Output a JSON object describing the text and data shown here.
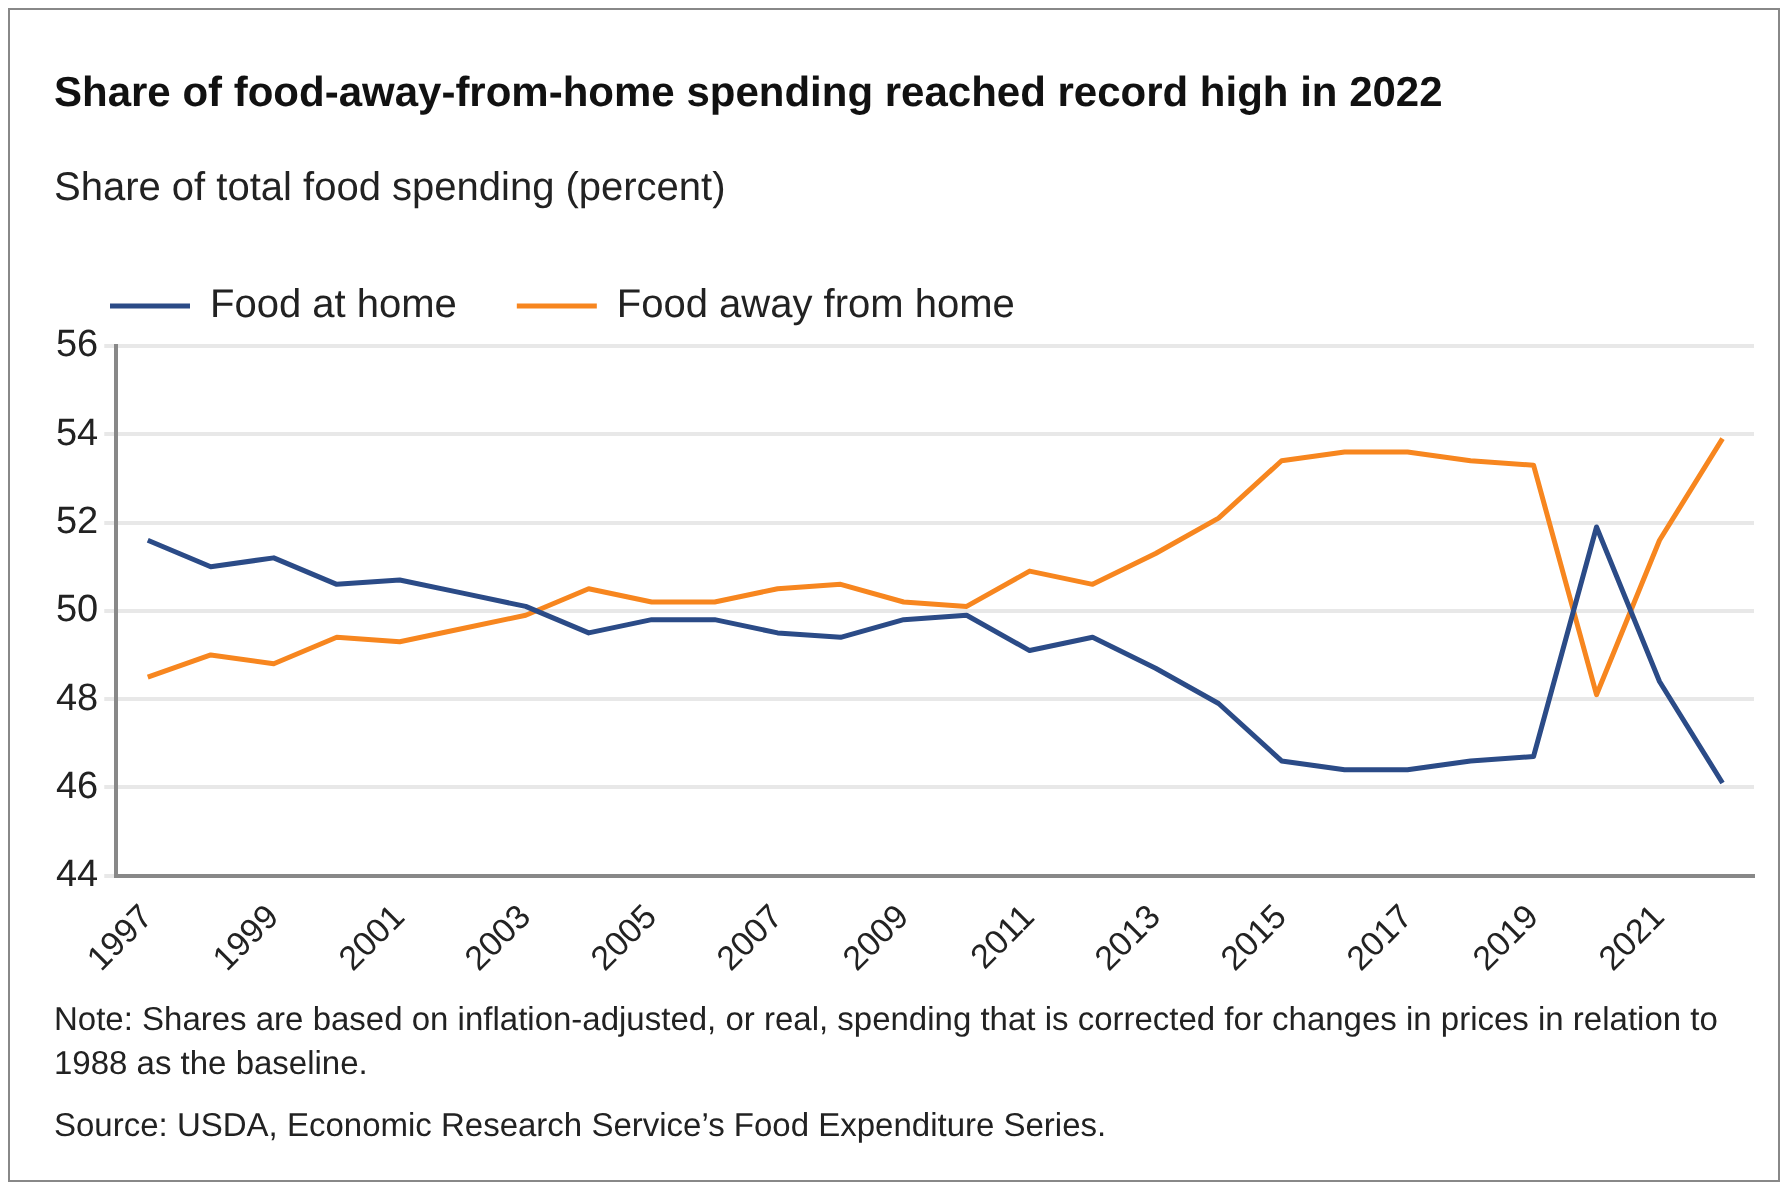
{
  "chart_data": {
    "type": "line",
    "title": "Share of food-away-from-home spending reached record high in 2022",
    "ylabel": "Share of total food spending (percent)",
    "categories": [
      "1997",
      null,
      "1999",
      null,
      "2001",
      null,
      "2003",
      null,
      "2005",
      null,
      "2007",
      null,
      "2009",
      null,
      "2011",
      null,
      "2013",
      null,
      "2015",
      null,
      "2017",
      null,
      "2019",
      null,
      "2021",
      null
    ],
    "series": [
      {
        "name": "Food at home",
        "color": "#2b4b87",
        "values": [
          51.6,
          51.0,
          51.2,
          50.6,
          50.7,
          50.4,
          50.1,
          49.5,
          49.8,
          49.8,
          49.5,
          49.4,
          49.8,
          49.9,
          49.1,
          49.4,
          48.7,
          47.9,
          46.6,
          46.4,
          46.4,
          46.6,
          46.7,
          51.9,
          48.4,
          46.1
        ]
      },
      {
        "name": "Food away from home",
        "color": "#f7861f",
        "values": [
          48.5,
          49.0,
          48.8,
          49.4,
          49.3,
          49.6,
          49.9,
          50.5,
          50.2,
          50.2,
          50.5,
          50.6,
          50.2,
          50.1,
          50.9,
          50.6,
          51.3,
          52.1,
          53.4,
          53.6,
          53.6,
          53.4,
          53.3,
          48.1,
          51.6,
          53.9
        ]
      }
    ],
    "ylim": [
      44,
      56
    ],
    "yticks": [
      44,
      46,
      48,
      50,
      52,
      54,
      56
    ],
    "grid": "y",
    "legend": "top left",
    "annotations": [
      "Note: Shares are based on inflation-adjusted, or real, spending that is corrected for changes in prices in relation to 1988 as the baseline.",
      "Source: USDA, Economic Research Service’s Food Expenditure Series."
    ]
  }
}
